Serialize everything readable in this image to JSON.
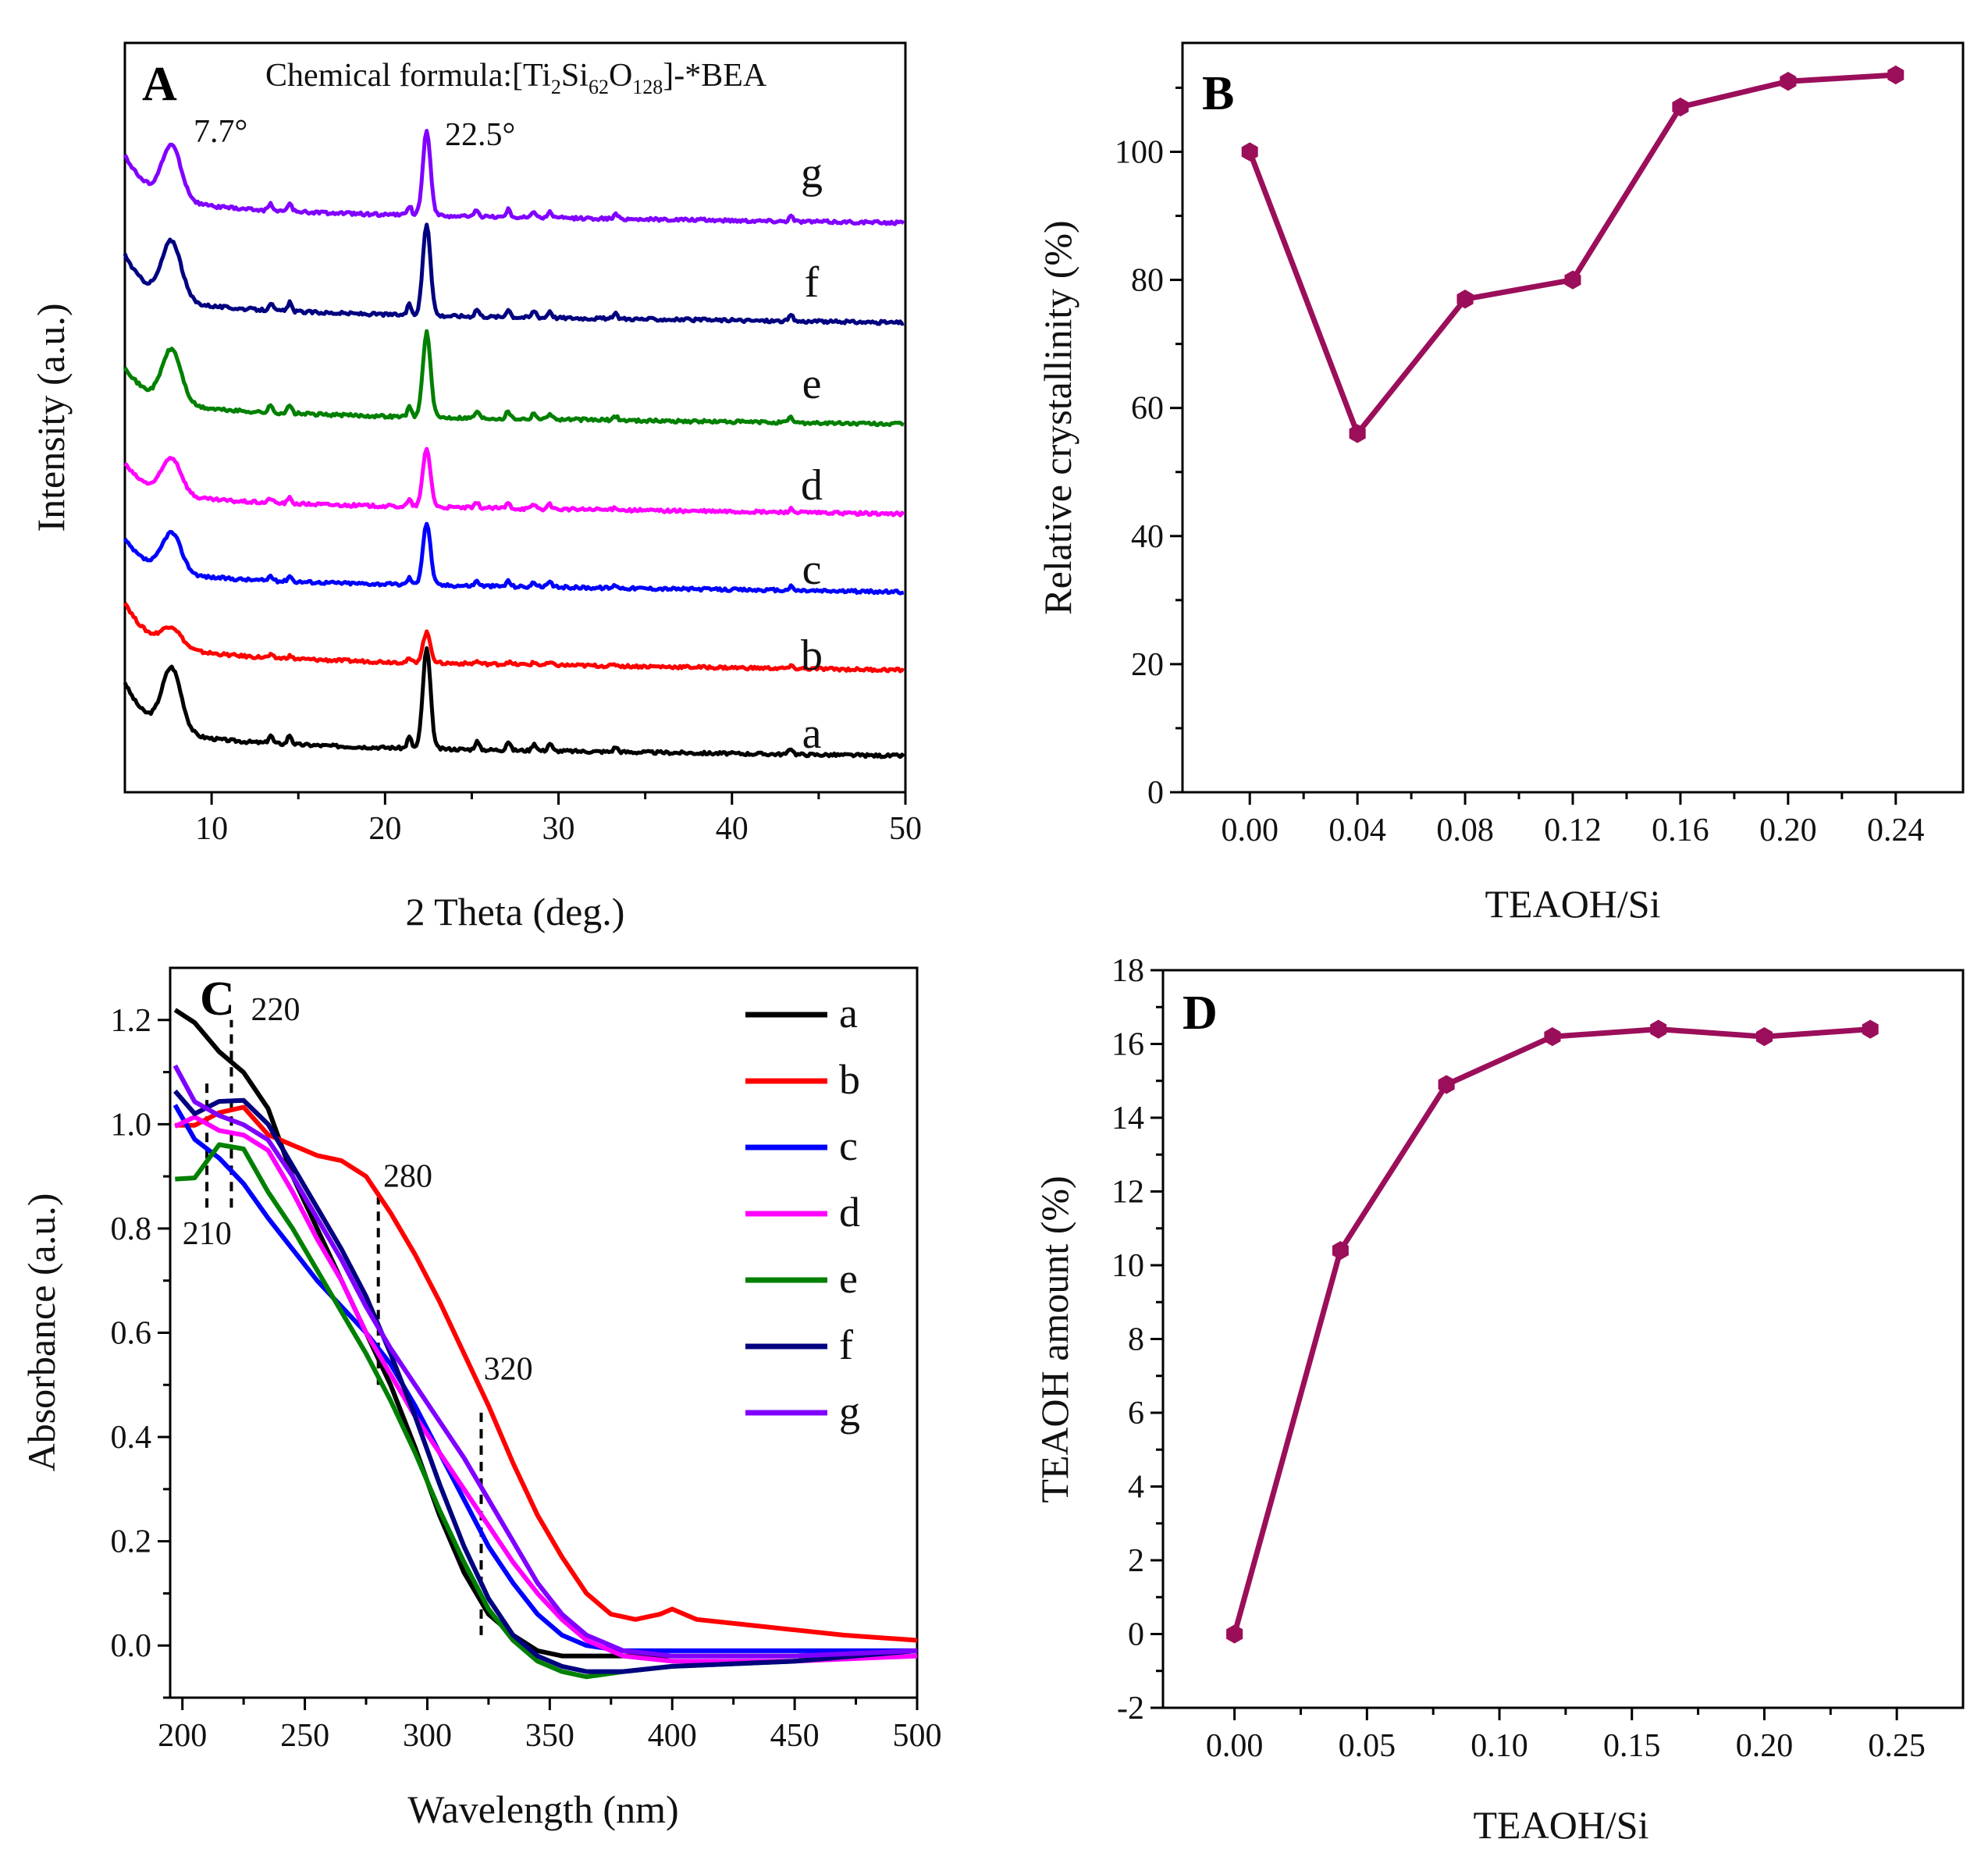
{
  "chart_data": [
    {
      "panel": "A",
      "type": "line",
      "annotation_formula_prefix": "Chemical formula:[Ti",
      "annotation_formula_parts": [
        "2",
        "Si",
        "62",
        "O",
        "128",
        "]-*BEA"
      ],
      "xlabel": "2 Theta (deg.)",
      "ylabel": "Intensity (a.u.)",
      "xlim": [
        5,
        50
      ],
      "xticks": [
        "10",
        "20",
        "30",
        "40",
        "50"
      ],
      "peak_labels": [
        "7.7°",
        "22.5°"
      ],
      "series": [
        {
          "name": "a",
          "color": "#000000",
          "scale": 1.0
        },
        {
          "name": "b",
          "color": "#ff0000",
          "scale": 0.3
        },
        {
          "name": "c",
          "color": "#0000ff",
          "scale": 0.62
        },
        {
          "name": "d",
          "color": "#ff00ff",
          "scale": 0.58
        },
        {
          "name": "e",
          "color": "#008000",
          "scale": 0.85
        },
        {
          "name": "f",
          "color": "#000080",
          "scale": 0.92
        },
        {
          "name": "g",
          "color": "#8000ff",
          "scale": 0.85
        }
      ]
    },
    {
      "panel": "B",
      "type": "line",
      "xlabel": "TEAOH/Si",
      "ylabel": "Relative crystallinity (%)",
      "color": "#9b0e5a",
      "x": [
        0.0,
        0.04,
        0.08,
        0.12,
        0.16,
        0.2,
        0.24
      ],
      "y": [
        100,
        56,
        77,
        80,
        107,
        111,
        112
      ],
      "xlim": [
        -0.025,
        0.265
      ],
      "ylim": [
        0,
        117
      ],
      "xticks": [
        "0.00",
        "0.04",
        "0.08",
        "0.12",
        "0.16",
        "0.20",
        "0.24"
      ],
      "yticks": [
        "0",
        "20",
        "40",
        "60",
        "80",
        "100"
      ]
    },
    {
      "panel": "C",
      "type": "line",
      "xlabel": "Wavelength (nm)",
      "ylabel": "Absorbance (a.u.)",
      "xlim": [
        195,
        500
      ],
      "ylim": [
        -0.1,
        1.3
      ],
      "xticks": [
        "200",
        "250",
        "300",
        "350",
        "400",
        "450",
        "500"
      ],
      "yticks": [
        "0.0",
        "0.2",
        "0.4",
        "0.6",
        "0.8",
        "1.0",
        "1.2"
      ],
      "annotations": [
        "210",
        "220",
        "280",
        "320"
      ],
      "series": [
        {
          "name": "a",
          "color": "#000000",
          "x": [
            197,
            205,
            215,
            225,
            235,
            245,
            255,
            265,
            275,
            285,
            295,
            305,
            315,
            325,
            335,
            345,
            355,
            365,
            380,
            400,
            450,
            500
          ],
          "y": [
            1.22,
            1.19,
            1.17,
            1.12,
            1.03,
            0.9,
            0.8,
            0.7,
            0.6,
            0.5,
            0.38,
            0.25,
            0.14,
            0.06,
            0.02,
            -0.01,
            -0.02,
            -0.02,
            -0.02,
            -0.02,
            -0.02,
            -0.01
          ]
        },
        {
          "name": "b",
          "color": "#ff0000",
          "x": [
            197,
            205,
            215,
            225,
            235,
            245,
            255,
            265,
            275,
            285,
            295,
            305,
            315,
            325,
            335,
            345,
            355,
            365,
            375,
            385,
            395,
            400,
            410,
            430,
            450,
            470,
            500
          ],
          "y": [
            0.98,
            1.0,
            1.0,
            1.0,
            0.98,
            0.96,
            0.94,
            0.93,
            0.9,
            0.83,
            0.75,
            0.66,
            0.56,
            0.46,
            0.35,
            0.25,
            0.17,
            0.1,
            0.06,
            0.05,
            0.06,
            0.07,
            0.05,
            0.04,
            0.03,
            0.02,
            0.01
          ]
        },
        {
          "name": "c",
          "color": "#0000ff",
          "x": [
            197,
            205,
            215,
            225,
            235,
            245,
            255,
            265,
            275,
            285,
            295,
            305,
            315,
            325,
            335,
            345,
            355,
            365,
            380,
            400,
            450,
            500
          ],
          "y": [
            1.0,
            0.98,
            0.94,
            0.88,
            0.82,
            0.76,
            0.7,
            0.65,
            0.6,
            0.54,
            0.46,
            0.37,
            0.28,
            0.19,
            0.12,
            0.06,
            0.02,
            0.0,
            -0.01,
            -0.01,
            -0.01,
            -0.01
          ]
        },
        {
          "name": "d",
          "color": "#ff00ff",
          "x": [
            197,
            205,
            215,
            225,
            235,
            245,
            255,
            265,
            275,
            285,
            295,
            305,
            315,
            325,
            335,
            345,
            355,
            365,
            380,
            400,
            450,
            500
          ],
          "y": [
            1.02,
            1.03,
            1.02,
            1.0,
            0.95,
            0.87,
            0.78,
            0.7,
            0.6,
            0.52,
            0.44,
            0.37,
            0.3,
            0.23,
            0.16,
            0.1,
            0.05,
            0.01,
            -0.02,
            -0.03,
            -0.03,
            -0.02
          ]
        },
        {
          "name": "e",
          "color": "#008000",
          "x": [
            197,
            205,
            215,
            225,
            235,
            245,
            255,
            265,
            275,
            285,
            295,
            305,
            315,
            325,
            335,
            345,
            355,
            365,
            380,
            400,
            450,
            500
          ],
          "y": [
            0.9,
            0.92,
            0.94,
            0.92,
            0.87,
            0.8,
            0.72,
            0.64,
            0.56,
            0.47,
            0.37,
            0.26,
            0.16,
            0.07,
            0.01,
            -0.03,
            -0.05,
            -0.06,
            -0.05,
            -0.04,
            -0.03,
            -0.01
          ]
        },
        {
          "name": "f",
          "color": "#000080",
          "x": [
            197,
            205,
            215,
            225,
            235,
            245,
            255,
            265,
            275,
            285,
            295,
            305,
            315,
            325,
            335,
            345,
            355,
            365,
            380,
            400,
            450,
            500
          ],
          "y": [
            1.05,
            1.05,
            1.05,
            1.04,
            1.0,
            0.92,
            0.84,
            0.76,
            0.67,
            0.56,
            0.44,
            0.31,
            0.19,
            0.09,
            0.02,
            -0.02,
            -0.04,
            -0.05,
            -0.05,
            -0.04,
            -0.03,
            -0.01
          ]
        },
        {
          "name": "g",
          "color": "#8000ff",
          "x": [
            197,
            205,
            215,
            225,
            235,
            245,
            255,
            265,
            275,
            285,
            295,
            305,
            315,
            325,
            335,
            345,
            355,
            365,
            380,
            400,
            450,
            500
          ],
          "y": [
            1.08,
            1.08,
            1.05,
            1.02,
            0.97,
            0.9,
            0.82,
            0.74,
            0.65,
            0.57,
            0.5,
            0.43,
            0.36,
            0.28,
            0.2,
            0.12,
            0.06,
            0.02,
            -0.01,
            -0.02,
            -0.02,
            -0.01
          ]
        }
      ]
    },
    {
      "panel": "D",
      "type": "line",
      "xlabel": "TEAOH/Si",
      "ylabel": "TEAOH amount (%)",
      "color": "#9b0e5a",
      "x": [
        0.0,
        0.04,
        0.08,
        0.12,
        0.16,
        0.2,
        0.24
      ],
      "y": [
        0.0,
        10.4,
        14.9,
        16.2,
        16.4,
        16.2,
        16.4
      ],
      "xlim": [
        -0.027,
        0.275
      ],
      "ylim": [
        -2,
        18
      ],
      "xticks": [
        "0.00",
        "0.05",
        "0.10",
        "0.15",
        "0.20",
        "0.25"
      ],
      "yticks": [
        "-2",
        "0",
        "2",
        "4",
        "6",
        "8",
        "10",
        "12",
        "14",
        "16",
        "18"
      ]
    }
  ]
}
